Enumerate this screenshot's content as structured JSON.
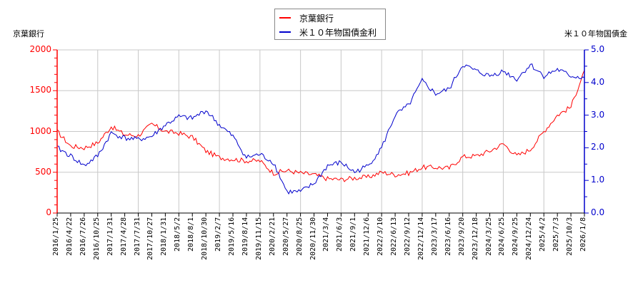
{
  "chart_data": {
    "type": "line",
    "title": "",
    "legend": {
      "position": "top-center",
      "entries": [
        {
          "label": "京葉銀行",
          "color": "#ff0000"
        },
        {
          "label": "米１０年物国債金利",
          "color": "#0000cc"
        }
      ]
    },
    "y_left": {
      "label": "京葉銀行",
      "range": [
        0,
        2000
      ],
      "ticks": [
        "0",
        "500",
        "1000",
        "1500",
        "2000"
      ],
      "color": "#ff0000"
    },
    "y_right": {
      "label": "米１０年物国債金",
      "range": [
        0.0,
        5.0
      ],
      "ticks": [
        "0.0",
        "1.0",
        "2.0",
        "3.0",
        "4.0",
        "5.0"
      ],
      "color": "#0000cc"
    },
    "xlabel": "",
    "grid": true,
    "categories": [
      "2016/1/25",
      "2016/4/22",
      "2016/7/26",
      "2016/10/25",
      "2017/1/31",
      "2017/4/28",
      "2017/7/31",
      "2017/10/27",
      "2018/1/31",
      "2018/5/2",
      "2018/8/1",
      "2018/10/30",
      "2019/2/7",
      "2019/5/16",
      "2019/8/14",
      "2019/11/15",
      "2020/2/21",
      "2020/5/27",
      "2020/8/25",
      "2020/11/30",
      "2021/3/4",
      "2021/6/3",
      "2021/9/1",
      "2021/12/6",
      "2022/3/10",
      "2022/6/13",
      "2022/9/12",
      "2022/12/14",
      "2023/3/17",
      "2023/6/16",
      "2023/9/20",
      "2023/12/18",
      "2024/3/25",
      "2024/6/25",
      "2024/9/25",
      "2024/12/24",
      "2025/4/2",
      "2025/7/3",
      "2025/10/3",
      "2026/1/8"
    ],
    "series": [
      {
        "name": "京葉銀行",
        "axis": "left",
        "color": "#ff0000",
        "values": [
          1000,
          820,
          800,
          860,
          1060,
          960,
          950,
          1090,
          1000,
          980,
          930,
          760,
          680,
          660,
          640,
          640,
          490,
          520,
          490,
          470,
          420,
          410,
          430,
          440,
          500,
          470,
          490,
          560,
          560,
          550,
          690,
          700,
          760,
          850,
          700,
          780,
          1000,
          1200,
          1300,
          1750
        ]
      },
      {
        "name": "米１０年物国債金利",
        "axis": "right",
        "color": "#0000cc",
        "values": [
          2.0,
          1.75,
          1.45,
          1.75,
          2.45,
          2.3,
          2.25,
          2.35,
          2.7,
          2.95,
          2.9,
          3.15,
          2.7,
          2.35,
          1.7,
          1.8,
          1.55,
          0.65,
          0.65,
          0.9,
          1.45,
          1.55,
          1.25,
          1.45,
          2.0,
          3.0,
          3.3,
          4.05,
          3.65,
          3.8,
          4.55,
          4.35,
          4.2,
          4.35,
          4.1,
          4.55,
          4.2,
          4.4,
          4.2,
          4.15
        ]
      }
    ]
  },
  "legend": {
    "item1": "京葉銀行",
    "item2": "米１０年物国債金利"
  },
  "axes": {
    "left_title": "京葉銀行",
    "right_title": "米１０年物国債金",
    "left_ticks": [
      "2000",
      "1500",
      "1000",
      "500",
      "0"
    ],
    "right_ticks": [
      "5.0",
      "4.0",
      "3.0",
      "2.0",
      "1.0",
      "0.0"
    ]
  }
}
